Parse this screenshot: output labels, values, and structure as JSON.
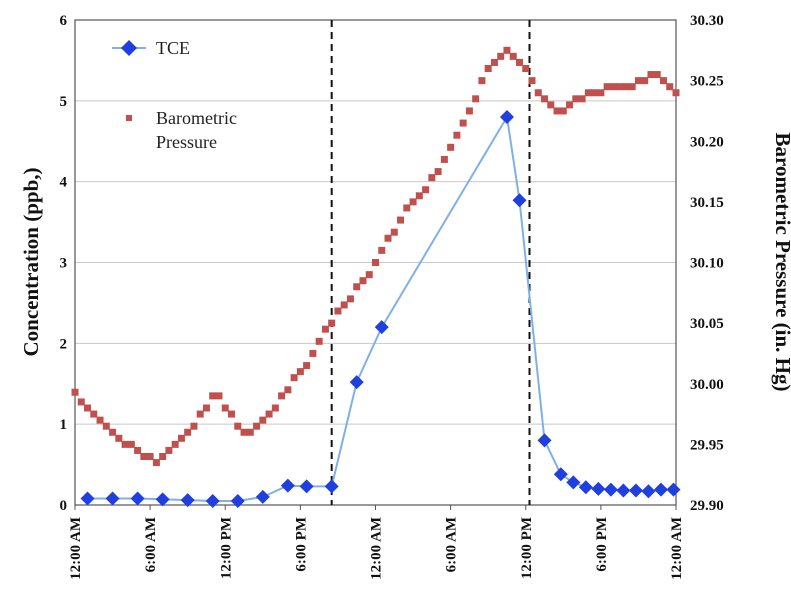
{
  "chart_data": {
    "type": "line",
    "title": "",
    "xlabel": "",
    "ylabel_left": "Concentration (ppb,)",
    "ylabel_right": "Barometric Pressure (in. Hg)",
    "ylim_left": [
      0,
      6
    ],
    "ylim_right": [
      29.9,
      30.3
    ],
    "xlim_hours": [
      0,
      48
    ],
    "grid": "horizontal",
    "legend": "top-left",
    "x_tick_labels": [
      "12:00 AM",
      "6:00 AM",
      "12:00 PM",
      "6:00 PM",
      "12:00 AM",
      "6:00 AM",
      "12:00 PM",
      "6:00 PM",
      "12:00 AM"
    ],
    "x_tick_hours": [
      0,
      6,
      12,
      18,
      24,
      30,
      36,
      42,
      48
    ],
    "y_left_ticks": [
      "0",
      "1",
      "2",
      "3",
      "4",
      "5",
      "6"
    ],
    "y_right_ticks": [
      "29.90",
      "29.95",
      "30.00",
      "30.05",
      "30.10",
      "30.15",
      "30.20",
      "30.25",
      "30.30"
    ],
    "vertical_markers_hours": [
      20.5,
      36.3
    ],
    "series": [
      {
        "name": "TCE",
        "axis": "left",
        "style": "line-marker",
        "color": "#1f3fe0",
        "line_color": "#7fb0e8",
        "x": [
          1,
          3,
          5,
          7,
          9,
          11,
          13,
          15,
          17,
          18.5,
          20.5,
          22.5,
          24.5,
          34.5,
          35.5,
          37.5,
          38.8,
          39.8,
          40.8,
          41.8,
          42.8,
          43.8,
          44.8,
          45.8,
          46.8,
          47.8
        ],
        "y": [
          0.08,
          0.08,
          0.08,
          0.07,
          0.06,
          0.05,
          0.05,
          0.1,
          0.24,
          0.23,
          0.23,
          1.52,
          2.2,
          4.8,
          3.77,
          0.8,
          0.38,
          0.28,
          0.22,
          0.2,
          0.19,
          0.18,
          0.18,
          0.17,
          0.19,
          0.19
        ]
      },
      {
        "name": "Barometric Pressure",
        "axis": "right",
        "style": "marker",
        "color": "#c0504d",
        "x": [
          0,
          0.5,
          1,
          1.5,
          2,
          2.5,
          3,
          3.5,
          4,
          4.5,
          5,
          5.5,
          6,
          6.5,
          7,
          7.5,
          8,
          8.5,
          9,
          9.5,
          10,
          10.5,
          11,
          11.5,
          12,
          12.5,
          13,
          13.5,
          14,
          14.5,
          15,
          15.5,
          16,
          16.5,
          17,
          17.5,
          18,
          18.5,
          19,
          19.5,
          20,
          20.5,
          21,
          21.5,
          22,
          22.5,
          23,
          23.5,
          24,
          24.5,
          25,
          25.5,
          26,
          26.5,
          27,
          27.5,
          28,
          28.5,
          29,
          29.5,
          30,
          30.5,
          31,
          31.5,
          32,
          32.5,
          33,
          33.5,
          34,
          34.5,
          35,
          35.5,
          36,
          36.5,
          37,
          37.5,
          38,
          38.5,
          39,
          39.5,
          40,
          40.5,
          41,
          41.5,
          42,
          42.5,
          43,
          43.5,
          44,
          44.5,
          45,
          45.5,
          46,
          46.5,
          47,
          47.5,
          48
        ],
        "y": [
          29.993,
          29.985,
          29.98,
          29.975,
          29.97,
          29.965,
          29.96,
          29.955,
          29.95,
          29.95,
          29.945,
          29.94,
          29.94,
          29.935,
          29.94,
          29.945,
          29.95,
          29.955,
          29.96,
          29.965,
          29.975,
          29.98,
          29.99,
          29.99,
          29.98,
          29.975,
          29.965,
          29.96,
          29.96,
          29.965,
          29.97,
          29.975,
          29.98,
          29.99,
          29.995,
          30.005,
          30.01,
          30.015,
          30.025,
          30.035,
          30.045,
          30.05,
          30.06,
          30.065,
          30.07,
          30.08,
          30.085,
          30.09,
          30.1,
          30.11,
          30.12,
          30.125,
          30.135,
          30.145,
          30.15,
          30.155,
          30.16,
          30.17,
          30.175,
          30.185,
          30.195,
          30.205,
          30.215,
          30.225,
          30.235,
          30.25,
          30.26,
          30.265,
          30.27,
          30.275,
          30.27,
          30.265,
          30.26,
          30.25,
          30.24,
          30.235,
          30.23,
          30.225,
          30.225,
          30.23,
          30.235,
          30.235,
          30.24,
          30.24,
          30.24,
          30.245,
          30.245,
          30.245,
          30.245,
          30.245,
          30.25,
          30.25,
          30.255,
          30.255,
          30.25,
          30.245,
          30.24
        ]
      }
    ]
  }
}
